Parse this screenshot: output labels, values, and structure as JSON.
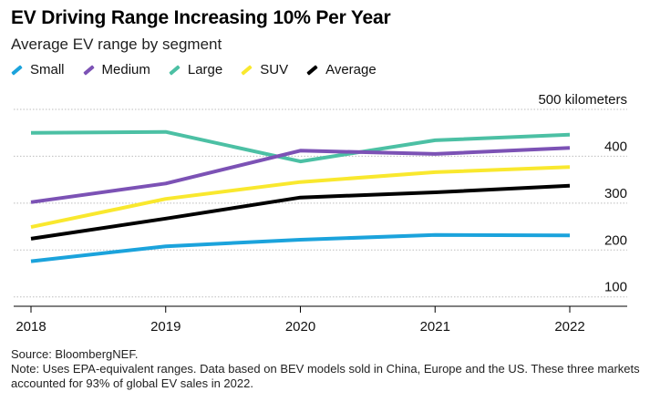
{
  "header": {
    "title": "EV Driving Range Increasing 10% Per Year",
    "subtitle": "Average EV range by segment"
  },
  "footer": {
    "source": "Source: BloombergNEF.",
    "note": "Note: Uses EPA-equivalent ranges. Data based on BEV models sold in China, Europe and the US. These three markets accounted for 93% of global EV sales in 2022."
  },
  "chart_data": {
    "type": "line",
    "title": "EV Driving Range Increasing 10% Per Year",
    "subtitle": "Average EV range by segment",
    "categories": [
      "2018",
      "2019",
      "2020",
      "2021",
      "2022"
    ],
    "ylabel": "",
    "y_unit_label": "500 kilometers",
    "y_ticks": [
      {
        "value": 500,
        "label": "500 kilometers"
      },
      {
        "value": 400,
        "label": "400"
      },
      {
        "value": 300,
        "label": "300"
      },
      {
        "value": 200,
        "label": "200"
      },
      {
        "value": 100,
        "label": "100"
      }
    ],
    "ylim": [
      80,
      500
    ],
    "grid": true,
    "legend_position": "top-left",
    "series": [
      {
        "name": "Small",
        "color": "#1ba3dc",
        "values": [
          176,
          208,
          222,
          232,
          231
        ]
      },
      {
        "name": "Medium",
        "color": "#7c52b5",
        "values": [
          302,
          342,
          412,
          405,
          418
        ]
      },
      {
        "name": "Large",
        "color": "#4cc0a4",
        "values": [
          450,
          452,
          389,
          434,
          446
        ]
      },
      {
        "name": "SUV",
        "color": "#f9e82e",
        "values": [
          249,
          309,
          345,
          366,
          377
        ]
      },
      {
        "name": "Average",
        "color": "#000000",
        "values": [
          224,
          267,
          312,
          323,
          337
        ]
      }
    ]
  }
}
